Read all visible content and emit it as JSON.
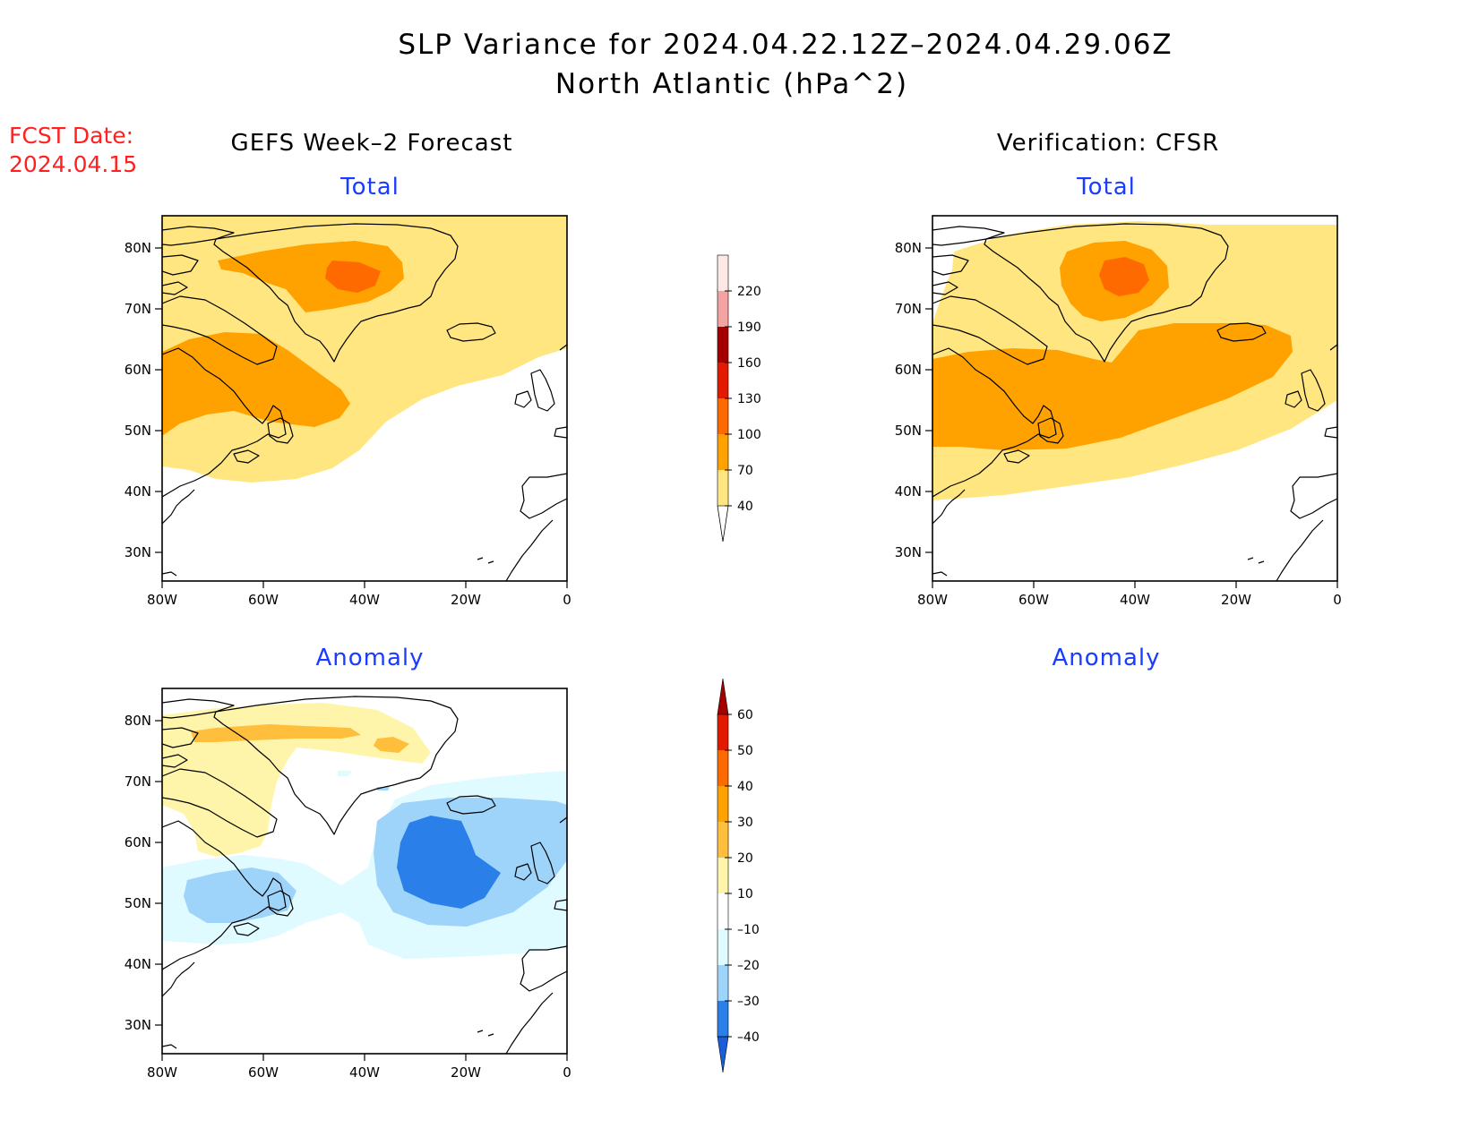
{
  "title": {
    "line1": "SLP Variance for 2024.04.22.12Z–2024.04.29.06Z",
    "line2": "North Atlantic (hPa^2)"
  },
  "fcst_date": {
    "label": "FCST Date:",
    "value": "2024.04.15"
  },
  "left_column_title": "GEFS Week–2 Forecast",
  "right_column_title": "Verification: CFSR",
  "panel_titles": {
    "forecast_total": "Total",
    "verification_total": "Total",
    "forecast_anomaly": "Anomaly",
    "verification_anomaly": "Anomaly"
  },
  "axes": {
    "lat_ticks": [
      "80N",
      "70N",
      "60N",
      "50N",
      "40N",
      "30N"
    ],
    "lon_ticks": [
      "80W",
      "60W",
      "40W",
      "20W",
      "0"
    ]
  },
  "total_colorbar": {
    "labels": [
      "220",
      "190",
      "160",
      "130",
      "100",
      "70",
      "40"
    ],
    "colors": [
      "#fde8e6",
      "#f4a3a3",
      "#a50000",
      "#e11a00",
      "#ff6a00",
      "#ffa200",
      "#ffe680"
    ]
  },
  "anomaly_colorbar": {
    "labels": [
      "60",
      "50",
      "40",
      "30",
      "20",
      "10",
      "–10",
      "–20",
      "–30",
      "–40"
    ],
    "colors": [
      "#a50000",
      "#e11a00",
      "#ff6a00",
      "#ffa200",
      "#ffbf3c",
      "#fff5aa",
      "#ffffff",
      "#e0fbff",
      "#9fd4fa",
      "#2a7fe8",
      "#1a5fd9"
    ]
  }
}
